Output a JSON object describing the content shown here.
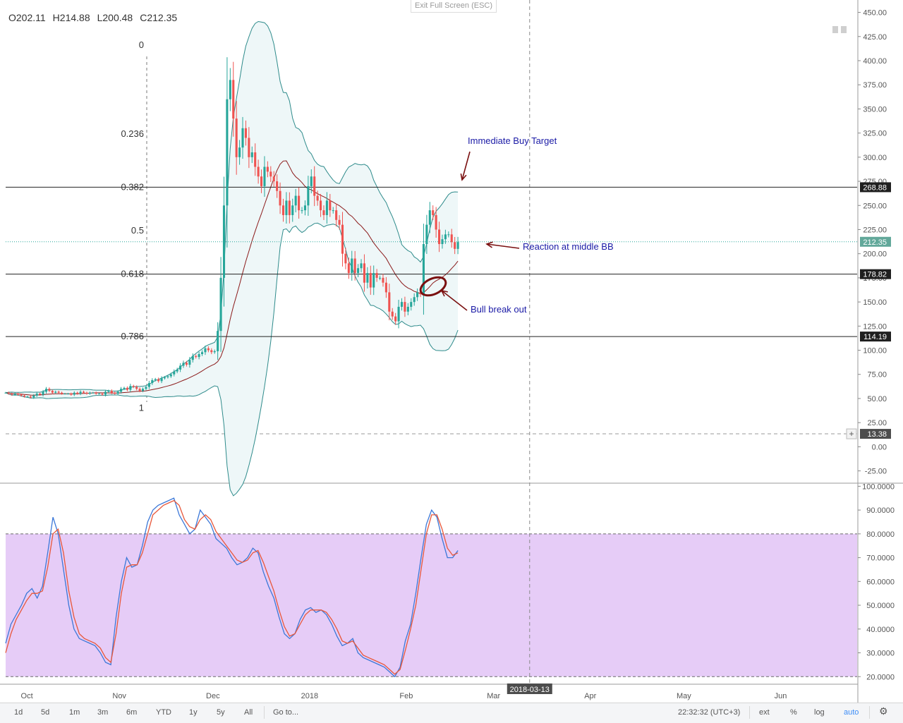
{
  "ui": {
    "exit_fullscreen": "Exit Full Screen (ESC)",
    "ohlc": {
      "open": "O202.11",
      "high": "H214.88",
      "low": "L200.48",
      "close": "C212.35"
    }
  },
  "colors": {
    "bull": "#26a69a",
    "bear": "#ef5350",
    "band": "#2e8b8b",
    "band_fill": "#eef7f8",
    "mid": "#8b1a1a",
    "k_line": "#3c78d8",
    "d_line": "#e8573a",
    "stoch_zone": "#e6ccf7",
    "annot": "#1a1aa6",
    "arrow": "#7a1010"
  },
  "chart_data": [
    {
      "type": "candlestick",
      "xlabel": "",
      "ylabel": "",
      "ylim": [
        -37,
        457
      ],
      "yticks": [
        "450.00",
        "425.00",
        "400.00",
        "375.00",
        "350.00",
        "325.00",
        "300.00",
        "275.00",
        "250.00",
        "225.00",
        "200.00",
        "175.00",
        "150.00",
        "125.00",
        "100.00",
        "75.00",
        "50.00",
        "25.00",
        "0.00",
        "-25.00"
      ],
      "ytick_values": [
        450,
        425,
        400,
        375,
        350,
        325,
        300,
        275,
        250,
        225,
        200,
        175,
        150,
        125,
        100,
        75,
        50,
        25,
        0,
        -25
      ],
      "x_axis": {
        "labels": [
          "Oct",
          "Nov",
          "Dec",
          "2018",
          "Feb",
          "Mar",
          "2018-03-13",
          "Apr",
          "May",
          "Jun"
        ],
        "dates": [
          "2017-10-01",
          "2017-11-01",
          "2017-12-01",
          "2018-01-01",
          "2018-02-01",
          "2018-03-01",
          "2018-03-13",
          "2018-04-01",
          "2018-05-01",
          "2018-06-01"
        ],
        "range": [
          "2017-09-26",
          "2018-06-26"
        ],
        "crosshair_date": "2018-03-13"
      },
      "closes": [
        {
          "date": "2017-09-26",
          "values": [
            56,
            55,
            54,
            55,
            54,
            53,
            52,
            52,
            51,
            53,
            55,
            54,
            57,
            60,
            58,
            56,
            57,
            56,
            55,
            55,
            55,
            54,
            56,
            55,
            57,
            56,
            55,
            56,
            56,
            55,
            55,
            54,
            57,
            58,
            56,
            55,
            57,
            60,
            61,
            59
          ]
        },
        {
          "date": "2017-11-05",
          "values": [
            63,
            62,
            60,
            58,
            60,
            62,
            66,
            69,
            70,
            68,
            71,
            72,
            73,
            75,
            78,
            80,
            84,
            87,
            85,
            90,
            94,
            93,
            96,
            98,
            102,
            100,
            98,
            99,
            120,
            175,
            250,
            360,
            380,
            340,
            300,
            310,
            330,
            320,
            300,
            305
          ]
        },
        {
          "date": "2017-12-15",
          "values": [
            290,
            280,
            270,
            290,
            285,
            280,
            275,
            265,
            250,
            240,
            255,
            240,
            250,
            260,
            245,
            245,
            250,
            270,
            280,
            260,
            255,
            245,
            240,
            255,
            245,
            245,
            235,
            230,
            200,
            190,
            180,
            195,
            180,
            185,
            190,
            170,
            180,
            165,
            180,
            175
          ]
        },
        {
          "date": "2018-01-24",
          "values": [
            175,
            170,
            160,
            140,
            135,
            130,
            145,
            150,
            140,
            145,
            150,
            155,
            160,
            158,
            210,
            230,
            245,
            240,
            225,
            210,
            215,
            220,
            220,
            212,
            205,
            212
          ]
        }
      ],
      "fib_levels": [
        {
          "label": "0",
          "price": 416
        },
        {
          "label": "0.236",
          "price": 324
        },
        {
          "label": "0.382",
          "price": 268.88
        },
        {
          "label": "0.5",
          "price": 224
        },
        {
          "label": "0.618",
          "price": 178.82
        },
        {
          "label": "0.786",
          "price": 114.19
        },
        {
          "label": "1",
          "price": 40
        }
      ],
      "hlines": [
        {
          "price": 268.88,
          "label": "268.88"
        },
        {
          "price": 178.82,
          "label": "178.82"
        },
        {
          "price": 114.19,
          "label": "114.19"
        }
      ],
      "last_price": {
        "price": 212.35,
        "label": "212.35"
      },
      "crosshair_price": {
        "price": 13.38,
        "label": "13.38"
      },
      "annotations": [
        "Immediate Buy Target",
        "Reaction at middle BB",
        "Bull break out"
      ],
      "bollinger": "upper, middle and lower band around price (20)"
    },
    {
      "type": "line",
      "ylim": [
        18,
        101
      ],
      "yticks": [
        "100.0000",
        "90.0000",
        "80.0000",
        "70.0000",
        "60.0000",
        "50.0000",
        "40.0000",
        "30.0000",
        "20.0000"
      ],
      "ytick_values": [
        100,
        90,
        80,
        70,
        60,
        50,
        40,
        30,
        20
      ],
      "zone": [
        20,
        80
      ],
      "series": [
        {
          "key": "k",
          "values": [
            34,
            42,
            46,
            50,
            55,
            57,
            53,
            58,
            72,
            87,
            80,
            65,
            50,
            40,
            36,
            35,
            34,
            33,
            30,
            26,
            25,
            45,
            60,
            70,
            66,
            67,
            75,
            85,
            90,
            92,
            93,
            94,
            95,
            88,
            84,
            80,
            82,
            90,
            87,
            84,
            78,
            76,
            74,
            70,
            67,
            68,
            70,
            74,
            72,
            64,
            58,
            53,
            45,
            38,
            36,
            38,
            44,
            48,
            49,
            47,
            48,
            46,
            42,
            37,
            33,
            34,
            36,
            30,
            28,
            27,
            26,
            25,
            24,
            22,
            20,
            24,
            35,
            42,
            55,
            70,
            84,
            90,
            87,
            78,
            70,
            70,
            73
          ]
        },
        {
          "key": "d",
          "values": [
            30,
            38,
            44,
            48,
            52,
            55,
            55,
            56,
            66,
            80,
            82,
            72,
            56,
            45,
            38,
            36,
            35,
            34,
            32,
            28,
            26,
            38,
            55,
            66,
            67,
            67,
            72,
            80,
            88,
            90,
            92,
            93,
            94,
            92,
            86,
            83,
            82,
            86,
            88,
            86,
            81,
            78,
            75,
            72,
            69,
            68,
            69,
            72,
            73,
            68,
            62,
            56,
            48,
            41,
            37,
            38,
            42,
            46,
            48,
            48,
            48,
            47,
            44,
            40,
            35,
            34,
            35,
            32,
            29,
            28,
            27,
            26,
            25,
            23,
            21,
            23,
            31,
            40,
            50,
            65,
            80,
            88,
            88,
            82,
            74,
            71,
            72
          ]
        }
      ]
    }
  ],
  "bottom_bar": {
    "ranges": [
      "1d",
      "5d",
      "1m",
      "3m",
      "6m",
      "YTD",
      "1y",
      "5y",
      "All"
    ],
    "goto": "Go to...",
    "time": "22:32:32 (UTC+3)",
    "right": [
      "ext",
      "%",
      "log",
      "auto"
    ]
  }
}
